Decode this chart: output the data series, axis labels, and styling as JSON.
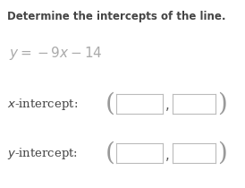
{
  "title": "Determine the intercepts of the line.",
  "bg_color": "#ffffff",
  "text_color": "#444444",
  "eq_color": "#aaaaaa",
  "title_fontsize": 8.5,
  "eq_fontsize": 11,
  "label_fontsize": 9.5,
  "paren_fontsize": 20,
  "box_edge_color": "#bbbbbb",
  "box_face_color": "#ffffff",
  "comma_color": "#555555",
  "paren_color": "#999999"
}
